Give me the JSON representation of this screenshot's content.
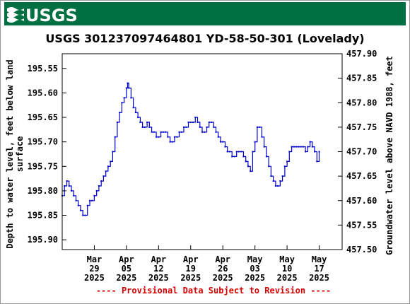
{
  "header": {
    "logo_text": "USGS",
    "banner_color": "#006f41"
  },
  "chart_data": {
    "type": "line",
    "title": "USGS 301237097464801 YD-58-50-301 (Lovelady)",
    "ylabel_left": [
      "Depth to water level, feet below land",
      "surface"
    ],
    "ylabel_right": "Groundwater level above NAVD 1988, feet",
    "yaxis_left": {
      "min": 195.52,
      "max": 195.92,
      "inverted": true,
      "ticks": [
        "195.55",
        "195.60",
        "195.65",
        "195.70",
        "195.75",
        "195.80",
        "195.85",
        "195.90"
      ]
    },
    "yaxis_right": {
      "min": 457.5,
      "max": 457.9,
      "ticks": [
        "457.90",
        "457.85",
        "457.80",
        "457.75",
        "457.70",
        "457.65",
        "457.60",
        "457.55",
        "457.50"
      ]
    },
    "xaxis": {
      "min": "2025-03-22",
      "max": "2025-05-22",
      "ticks": [
        {
          "date": "2025-03-29",
          "lines": [
            "Mar",
            "29",
            "2025"
          ]
        },
        {
          "date": "2025-04-05",
          "lines": [
            "Apr",
            "05",
            "2025"
          ]
        },
        {
          "date": "2025-04-12",
          "lines": [
            "Apr",
            "12",
            "2025"
          ]
        },
        {
          "date": "2025-04-19",
          "lines": [
            "Apr",
            "19",
            "2025"
          ]
        },
        {
          "date": "2025-04-26",
          "lines": [
            "Apr",
            "26",
            "2025"
          ]
        },
        {
          "date": "2025-05-03",
          "lines": [
            "May",
            "03",
            "2025"
          ]
        },
        {
          "date": "2025-05-10",
          "lines": [
            "May",
            "10",
            "2025"
          ]
        },
        {
          "date": "2025-05-17",
          "lines": [
            "May",
            "17",
            "2025"
          ]
        }
      ]
    },
    "series": [
      {
        "color": "#0000cc",
        "points": [
          [
            "2025-03-22",
            195.81
          ],
          [
            "2025-03-22T12:00",
            195.79
          ],
          [
            "2025-03-23",
            195.78
          ],
          [
            "2025-03-23T12:00",
            195.79
          ],
          [
            "2025-03-24",
            195.8
          ],
          [
            "2025-03-24T12:00",
            195.81
          ],
          [
            "2025-03-25",
            195.82
          ],
          [
            "2025-03-25T12:00",
            195.83
          ],
          [
            "2025-03-26",
            195.84
          ],
          [
            "2025-03-26T12:00",
            195.85
          ],
          [
            "2025-03-27",
            195.85
          ],
          [
            "2025-03-27T12:00",
            195.83
          ],
          [
            "2025-03-28",
            195.82
          ],
          [
            "2025-03-28T12:00",
            195.82
          ],
          [
            "2025-03-29",
            195.81
          ],
          [
            "2025-03-29T12:00",
            195.8
          ],
          [
            "2025-03-30",
            195.79
          ],
          [
            "2025-03-30T12:00",
            195.78
          ],
          [
            "2025-03-31",
            195.77
          ],
          [
            "2025-03-31T12:00",
            195.76
          ],
          [
            "2025-04-01",
            195.75
          ],
          [
            "2025-04-01T12:00",
            195.74
          ],
          [
            "2025-04-02",
            195.72
          ],
          [
            "2025-04-02T12:00",
            195.69
          ],
          [
            "2025-04-03",
            195.66
          ],
          [
            "2025-04-03T12:00",
            195.64
          ],
          [
            "2025-04-04",
            195.62
          ],
          [
            "2025-04-04T12:00",
            195.61
          ],
          [
            "2025-04-05",
            195.59
          ],
          [
            "2025-04-05T06:00",
            195.58
          ],
          [
            "2025-04-05T12:00",
            195.59
          ],
          [
            "2025-04-06",
            195.61
          ],
          [
            "2025-04-06T12:00",
            195.63
          ],
          [
            "2025-04-07",
            195.64
          ],
          [
            "2025-04-07T12:00",
            195.65
          ],
          [
            "2025-04-08",
            195.66
          ],
          [
            "2025-04-08T12:00",
            195.67
          ],
          [
            "2025-04-09",
            195.67
          ],
          [
            "2025-04-09T12:00",
            195.66
          ],
          [
            "2025-04-10",
            195.67
          ],
          [
            "2025-04-10T12:00",
            195.68
          ],
          [
            "2025-04-11",
            195.68
          ],
          [
            "2025-04-11T12:00",
            195.69
          ],
          [
            "2025-04-12",
            195.69
          ],
          [
            "2025-04-12T12:00",
            195.68
          ],
          [
            "2025-04-13",
            195.68
          ],
          [
            "2025-04-13T12:00",
            195.68
          ],
          [
            "2025-04-14",
            195.69
          ],
          [
            "2025-04-14T12:00",
            195.7
          ],
          [
            "2025-04-15",
            195.7
          ],
          [
            "2025-04-15T12:00",
            195.69
          ],
          [
            "2025-04-16",
            195.69
          ],
          [
            "2025-04-16T12:00",
            195.68
          ],
          [
            "2025-04-17",
            195.68
          ],
          [
            "2025-04-17T12:00",
            195.67
          ],
          [
            "2025-04-18",
            195.67
          ],
          [
            "2025-04-18T12:00",
            195.66
          ],
          [
            "2025-04-19",
            195.66
          ],
          [
            "2025-04-19T12:00",
            195.66
          ],
          [
            "2025-04-20",
            195.65
          ],
          [
            "2025-04-20T12:00",
            195.66
          ],
          [
            "2025-04-21",
            195.67
          ],
          [
            "2025-04-21T12:00",
            195.68
          ],
          [
            "2025-04-22",
            195.68
          ],
          [
            "2025-04-22T12:00",
            195.67
          ],
          [
            "2025-04-23",
            195.66
          ],
          [
            "2025-04-23T12:00",
            195.66
          ],
          [
            "2025-04-24",
            195.67
          ],
          [
            "2025-04-24T12:00",
            195.68
          ],
          [
            "2025-04-25",
            195.69
          ],
          [
            "2025-04-25T12:00",
            195.7
          ],
          [
            "2025-04-26",
            195.7
          ],
          [
            "2025-04-26T12:00",
            195.71
          ],
          [
            "2025-04-27",
            195.72
          ],
          [
            "2025-04-27T12:00",
            195.72
          ],
          [
            "2025-04-28",
            195.73
          ],
          [
            "2025-04-28T12:00",
            195.73
          ],
          [
            "2025-04-29",
            195.72
          ],
          [
            "2025-04-29T12:00",
            195.72
          ],
          [
            "2025-04-30",
            195.72
          ],
          [
            "2025-04-30T12:00",
            195.73
          ],
          [
            "2025-05-01",
            195.74
          ],
          [
            "2025-05-01T12:00",
            195.75
          ],
          [
            "2025-05-02",
            195.76
          ],
          [
            "2025-05-02T12:00",
            195.72
          ],
          [
            "2025-05-03",
            195.7
          ],
          [
            "2025-05-03T12:00",
            195.67
          ],
          [
            "2025-05-04",
            195.67
          ],
          [
            "2025-05-04T12:00",
            195.69
          ],
          [
            "2025-05-05",
            195.71
          ],
          [
            "2025-05-05T12:00",
            195.73
          ],
          [
            "2025-05-06",
            195.75
          ],
          [
            "2025-05-06T12:00",
            195.77
          ],
          [
            "2025-05-07",
            195.78
          ],
          [
            "2025-05-07T12:00",
            195.79
          ],
          [
            "2025-05-08",
            195.79
          ],
          [
            "2025-05-08T12:00",
            195.78
          ],
          [
            "2025-05-09",
            195.77
          ],
          [
            "2025-05-09T12:00",
            195.75
          ],
          [
            "2025-05-10",
            195.74
          ],
          [
            "2025-05-10T12:00",
            195.72
          ],
          [
            "2025-05-11",
            195.71
          ],
          [
            "2025-05-11T12:00",
            195.71
          ],
          [
            "2025-05-12",
            195.71
          ],
          [
            "2025-05-12T12:00",
            195.71
          ],
          [
            "2025-05-13",
            195.71
          ],
          [
            "2025-05-13T12:00",
            195.71
          ],
          [
            "2025-05-14",
            195.72
          ],
          [
            "2025-05-14T12:00",
            195.71
          ],
          [
            "2025-05-15",
            195.7
          ],
          [
            "2025-05-15T12:00",
            195.71
          ],
          [
            "2025-05-16",
            195.72
          ],
          [
            "2025-05-16T12:00",
            195.74
          ],
          [
            "2025-05-17",
            195.72
          ]
        ]
      }
    ],
    "grid": true,
    "footer_note": "---- Provisional Data Subject to Revision ----"
  }
}
